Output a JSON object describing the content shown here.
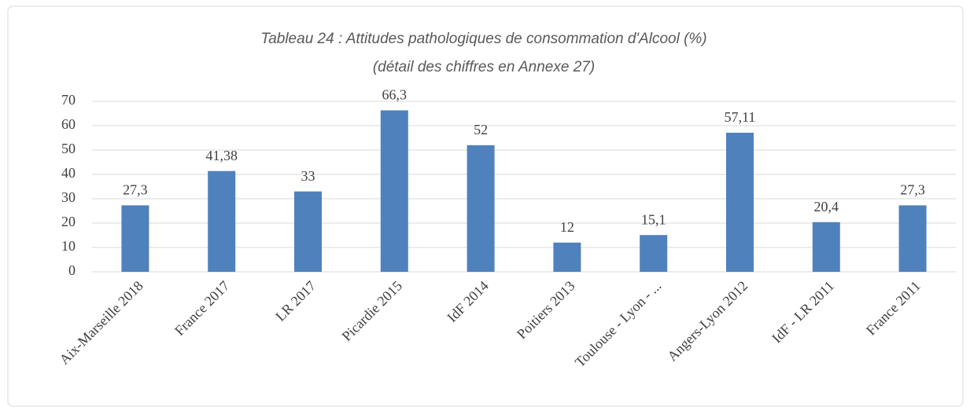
{
  "chart_data": {
    "type": "bar",
    "title": "Tableau 24 : Attitudes pathologiques de consommation d'Alcool (%)",
    "subtitle": "(détail des chiffres en Annexe 27)",
    "categories": [
      "Aix-Marseille 2018",
      "France 2017",
      "LR 2017",
      "Picardie 2015",
      "IdF 2014",
      "Poitiers 2013",
      "Toulouse - Lyon - ...",
      "Angers-Lyon 2012",
      "IdF - LR 2011",
      "France 2011"
    ],
    "values": [
      27.3,
      41.38,
      33,
      66.3,
      52,
      12,
      15.1,
      57.11,
      20.4,
      27.3
    ],
    "value_labels": [
      "27,3",
      "41,38",
      "33",
      "66,3",
      "52",
      "12",
      "15,1",
      "57,11",
      "20,4",
      "27,3"
    ],
    "color": "#4f81bd",
    "ylim": [
      0,
      70
    ],
    "yticks": [
      0,
      10,
      20,
      30,
      40,
      50,
      60,
      70
    ],
    "grid": true
  }
}
